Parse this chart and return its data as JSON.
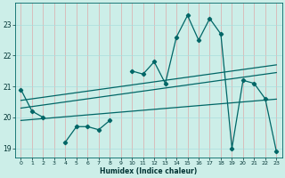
{
  "xlabel": "Humidex (Indice chaleur)",
  "background_color": "#cceee8",
  "grid_color_h": "#aadddd",
  "grid_color_v": "#ddaaaa",
  "line_color": "#006666",
  "x": [
    0,
    1,
    2,
    3,
    4,
    5,
    6,
    7,
    8,
    9,
    10,
    11,
    12,
    13,
    14,
    15,
    16,
    17,
    18,
    19,
    20,
    21,
    22,
    23
  ],
  "y_main": [
    20.9,
    20.2,
    20.0,
    null,
    19.2,
    19.7,
    19.7,
    19.6,
    19.9,
    null,
    21.5,
    21.4,
    21.8,
    21.1,
    22.6,
    23.3,
    22.5,
    23.2,
    22.7,
    19.0,
    21.2,
    21.1,
    20.6,
    18.9
  ],
  "y_upper": [
    20.55,
    20.6,
    20.65,
    20.7,
    20.75,
    20.8,
    20.85,
    20.9,
    20.95,
    21.0,
    21.05,
    21.1,
    21.15,
    21.2,
    21.25,
    21.3,
    21.35,
    21.4,
    21.45,
    21.5,
    21.55,
    21.6,
    21.65,
    21.7
  ],
  "y_mid": [
    20.3,
    20.35,
    20.4,
    20.45,
    20.5,
    20.55,
    20.6,
    20.65,
    20.7,
    20.75,
    20.8,
    20.85,
    20.9,
    20.95,
    21.0,
    21.05,
    21.1,
    21.15,
    21.2,
    21.25,
    21.3,
    21.35,
    21.4,
    21.45
  ],
  "y_lower": [
    19.9,
    19.93,
    19.96,
    19.99,
    20.02,
    20.05,
    20.08,
    20.11,
    20.14,
    20.17,
    20.2,
    20.23,
    20.26,
    20.29,
    20.32,
    20.35,
    20.38,
    20.41,
    20.44,
    20.47,
    20.5,
    20.53,
    20.56,
    20.59
  ],
  "ylim": [
    18.7,
    23.7
  ],
  "yticks": [
    19,
    20,
    21,
    22,
    23
  ],
  "xticks": [
    0,
    1,
    2,
    3,
    4,
    5,
    6,
    7,
    8,
    9,
    10,
    11,
    12,
    13,
    14,
    15,
    16,
    17,
    18,
    19,
    20,
    21,
    22,
    23
  ]
}
